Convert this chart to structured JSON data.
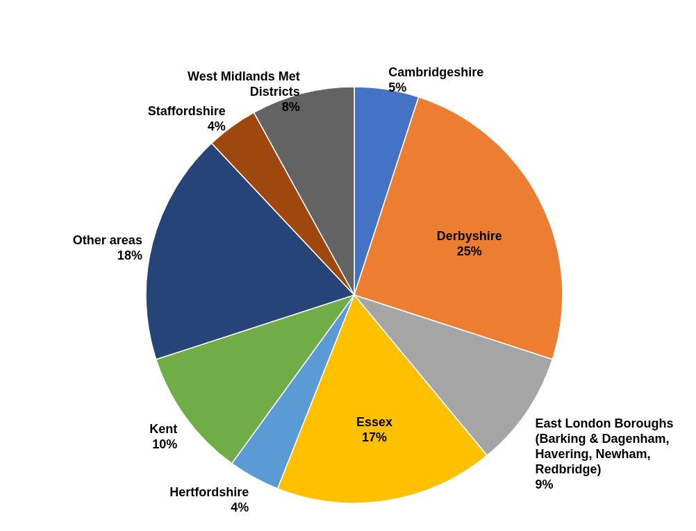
{
  "chart_data": {
    "type": "pie",
    "categories": [
      "Cambridgeshire",
      "Derbyshire",
      "East London Boroughs (Barking & Dagenham, Havering, Newham, Redbridge)",
      "Essex",
      "Hertfordshire",
      "Kent",
      "Other areas",
      "Staffordshire",
      "West Midlands Met Districts"
    ],
    "values": [
      5,
      25,
      9,
      17,
      4,
      10,
      18,
      4,
      8
    ],
    "value_labels": [
      "5%",
      "25%",
      "9%",
      "17%",
      "4%",
      "10%",
      "18%",
      "4%",
      "8%"
    ],
    "colors": [
      "#4472c4",
      "#ed7d31",
      "#a5a5a5",
      "#ffc000",
      "#5b9bd5",
      "#70ad47",
      "#264478",
      "#9e480e",
      "#636363"
    ]
  }
}
